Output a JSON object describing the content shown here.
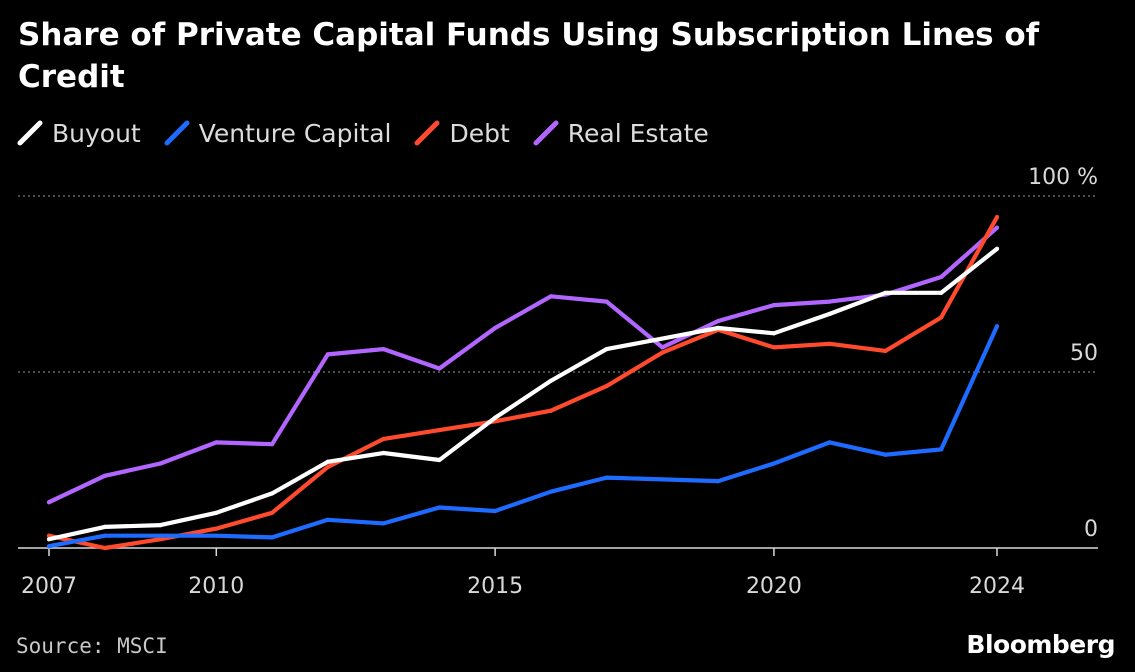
{
  "title": "Share of Private Capital Funds Using Subscription Lines of Credit",
  "source": "Source: MSCI",
  "brand": "Bloomberg",
  "chart_data": {
    "type": "line",
    "title": "Share of Private Capital Funds Using Subscription Lines of Credit",
    "xlabel": "",
    "ylabel": "",
    "y_unit_label": "%",
    "ylim": [
      0,
      100
    ],
    "y_ticks": [
      0,
      50,
      100
    ],
    "y_tick_labels": [
      "0",
      "50",
      "100 %"
    ],
    "x_ticks": [
      2007,
      2010,
      2015,
      2020,
      2024
    ],
    "x_tick_labels": [
      "2007",
      "2010",
      "2015",
      "2020",
      "2024"
    ],
    "xlim": [
      2007,
      2025.8
    ],
    "grid": true,
    "legend_position": "top-left",
    "x": [
      2007,
      2008,
      2009,
      2010,
      2011,
      2012,
      2013,
      2014,
      2015,
      2016,
      2017,
      2018,
      2019,
      2020,
      2021,
      2022,
      2023,
      2024
    ],
    "series": [
      {
        "name": "Real Estate",
        "color": "#b266ff",
        "values": [
          13,
          20.5,
          24,
          30,
          29.5,
          55,
          56.5,
          51,
          62.5,
          71.5,
          70,
          57,
          64.5,
          69,
          70,
          72,
          77,
          91
        ]
      },
      {
        "name": "Debt",
        "color": "#ff4a2e",
        "values": [
          3.5,
          0,
          2.5,
          5.5,
          10,
          23,
          31,
          33.5,
          36,
          39,
          46,
          55.5,
          62,
          57,
          58,
          56,
          65.5,
          94
        ]
      },
      {
        "name": "Venture Capital",
        "color": "#1e6bff",
        "values": [
          0.5,
          3.5,
          3.5,
          3.5,
          3,
          8,
          7,
          11.5,
          10.5,
          16,
          20,
          19.5,
          19,
          24,
          30,
          26.5,
          28,
          63
        ]
      },
      {
        "name": "Buyout",
        "color": "#ffffff",
        "values": [
          2.5,
          6,
          6.5,
          10,
          15.5,
          24.5,
          27,
          25,
          37,
          47.5,
          56.5,
          59.5,
          62.5,
          61,
          66.5,
          72.5,
          72.5,
          85
        ]
      }
    ],
    "legend_order": [
      "Buyout",
      "Venture Capital",
      "Debt",
      "Real Estate"
    ]
  },
  "colors": {
    "background": "#000000",
    "grid": "#7a7a7a",
    "axis": "#d9d9d9",
    "text": "#ffffff"
  }
}
